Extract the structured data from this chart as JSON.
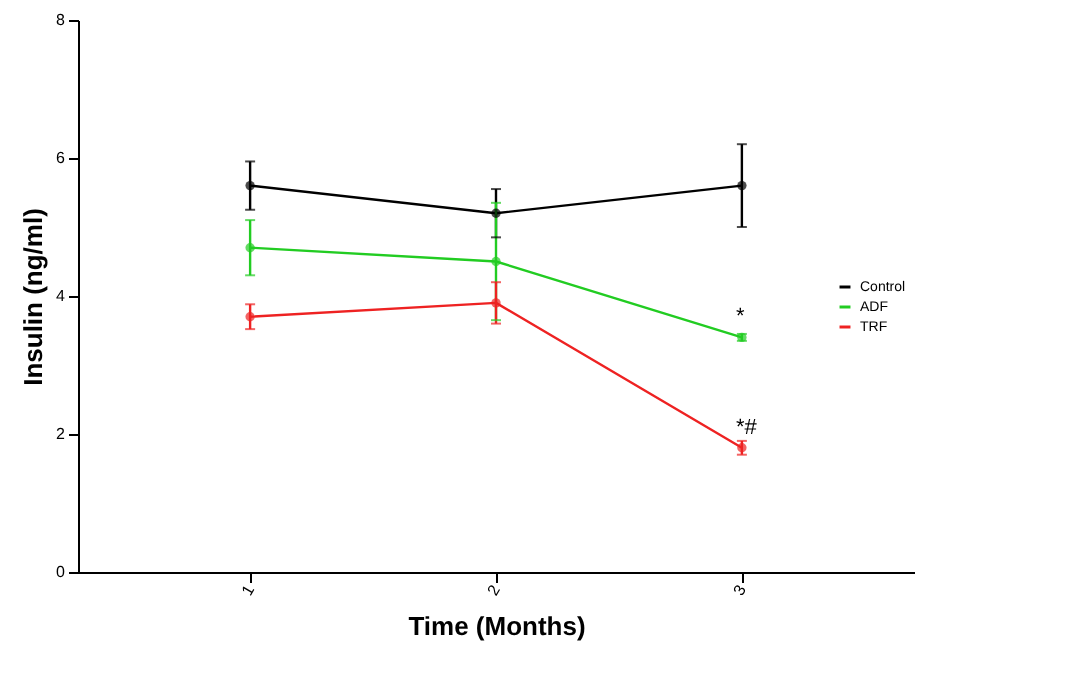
{
  "chart_data": {
    "type": "line",
    "xlabel": "Time (Months)",
    "ylabel": "Insulin (ng/ml)",
    "x": [
      1,
      2,
      3
    ],
    "xlim": [
      0.3,
      3.7
    ],
    "xticks": [
      1,
      2,
      3
    ],
    "ylim": [
      0,
      8
    ],
    "yticks": [
      0,
      2,
      4,
      6,
      8
    ],
    "grid": false,
    "legend": "right",
    "marker": "circle",
    "line_style": "solid",
    "series": [
      {
        "name": "Control",
        "color": "#000000",
        "values": [
          5.6,
          5.2,
          5.6
        ],
        "errors": [
          0.35,
          0.35,
          0.6
        ]
      },
      {
        "name": "ADF",
        "color": "#22cc22",
        "values": [
          4.7,
          4.5,
          3.4
        ],
        "errors": [
          0.4,
          0.85,
          0.05
        ]
      },
      {
        "name": "TRF",
        "color": "#ee2222",
        "values": [
          3.7,
          3.9,
          1.8
        ],
        "errors": [
          0.18,
          0.3,
          0.1
        ]
      }
    ],
    "annotations": [
      {
        "text": "*",
        "x": 3,
        "y": 3.4
      },
      {
        "text": "*#",
        "x": 3,
        "y": 1.8
      }
    ]
  }
}
